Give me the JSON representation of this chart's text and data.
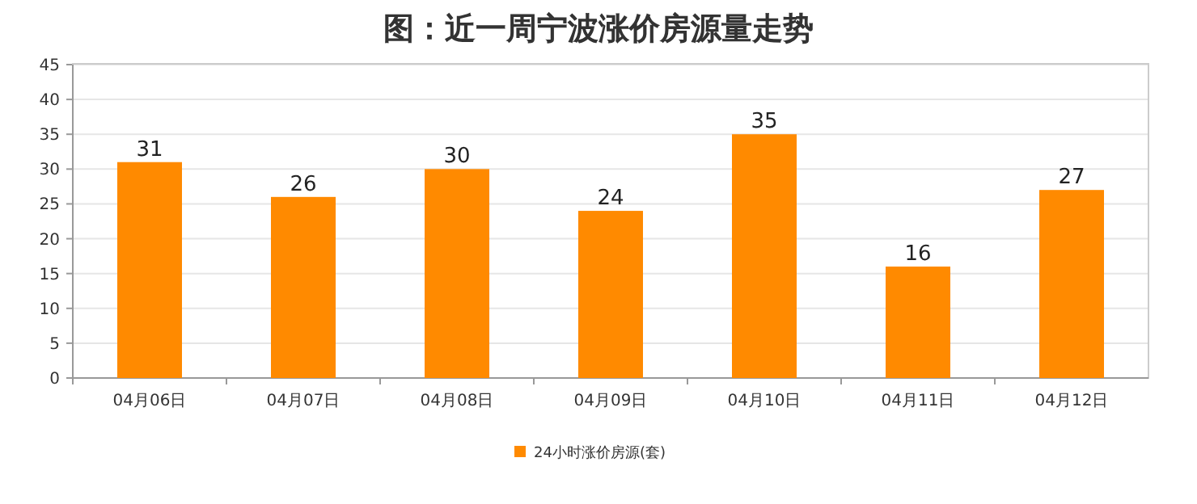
{
  "chart_data": {
    "type": "bar",
    "title": "图：近一周宁波涨价房源量走势",
    "categories": [
      "04月06日",
      "04月07日",
      "04月08日",
      "04月09日",
      "04月10日",
      "04月11日",
      "04月12日"
    ],
    "series": [
      {
        "name": "24小时涨价房源(套)",
        "color": "#ff8a00",
        "values": [
          31,
          26,
          30,
          24,
          35,
          16,
          27
        ]
      }
    ],
    "ylim": [
      0,
      45
    ],
    "yticks": [
      0,
      5,
      10,
      15,
      20,
      25,
      30,
      35,
      40,
      45
    ],
    "grid": "y",
    "legend": "bottom",
    "data_labels": true
  }
}
